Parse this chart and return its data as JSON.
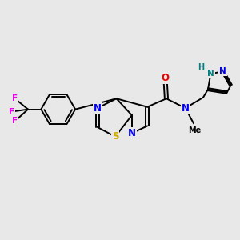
{
  "background_color": "#e8e8e8",
  "atom_colors": {
    "C": "#000000",
    "N": "#0000ee",
    "O": "#ee0000",
    "S": "#ccaa00",
    "F": "#ee00ee",
    "H": "#008080"
  },
  "bond_color": "#000000",
  "bond_width": 1.4,
  "font_size_atom": 8.5,
  "font_size_small": 7.0,
  "xlim": [
    0,
    10
  ],
  "ylim": [
    1,
    9
  ]
}
